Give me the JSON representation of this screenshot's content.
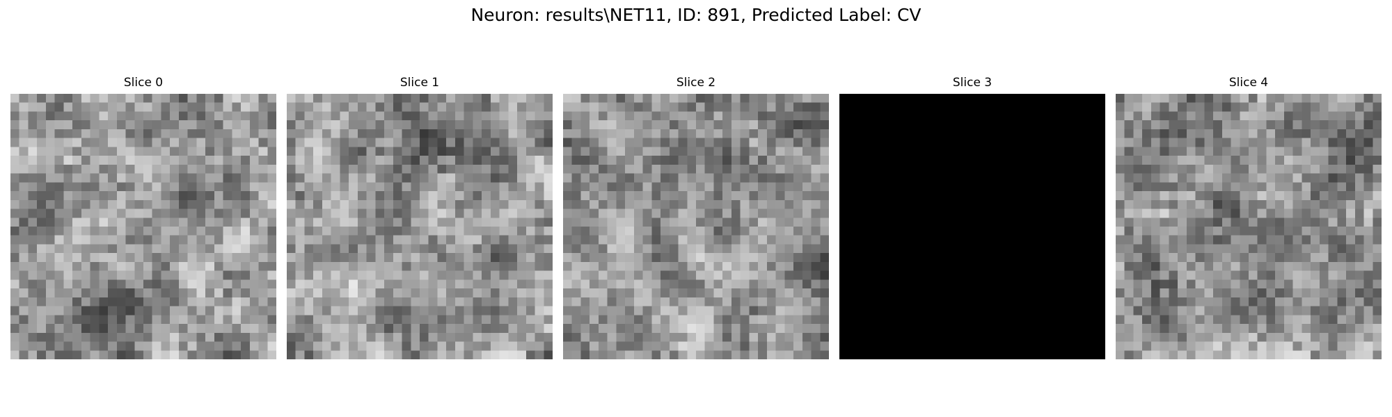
{
  "figure": {
    "title": "Neuron: results\\NET11, ID: 891, Predicted Label: CV"
  },
  "slices": [
    {
      "title": "Slice 0",
      "fill": "noise",
      "colormap": "gray"
    },
    {
      "title": "Slice 1",
      "fill": "noise",
      "colormap": "gray"
    },
    {
      "title": "Slice 2",
      "fill": "noise",
      "colormap": "gray"
    },
    {
      "title": "Slice 3",
      "fill": "uniform-black",
      "colormap": "gray"
    },
    {
      "title": "Slice 4",
      "fill": "noise",
      "colormap": "gray"
    }
  ]
}
